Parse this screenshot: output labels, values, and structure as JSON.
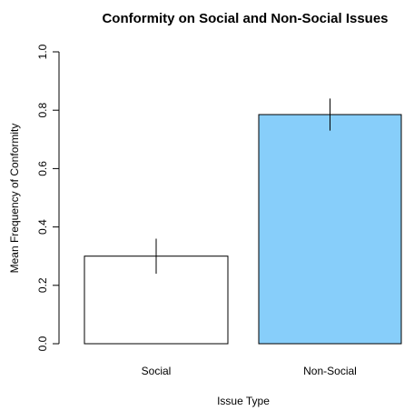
{
  "chart_data": {
    "type": "bar",
    "title": "Conformity on Social and Non-Social Issues",
    "xlabel": "Issue Type",
    "ylabel": "Mean Frequency of Conformity",
    "categories": [
      "Social",
      "Non-Social"
    ],
    "values": [
      0.3,
      0.785
    ],
    "error_low": [
      0.24,
      0.73
    ],
    "error_high": [
      0.36,
      0.84
    ],
    "bar_colors": [
      "#ffffff",
      "#87cefa"
    ],
    "ylim": [
      0.0,
      1.0
    ],
    "yticks": [
      "0.0",
      "0.2",
      "0.4",
      "0.6",
      "0.8",
      "1.0"
    ],
    "grid": false
  }
}
